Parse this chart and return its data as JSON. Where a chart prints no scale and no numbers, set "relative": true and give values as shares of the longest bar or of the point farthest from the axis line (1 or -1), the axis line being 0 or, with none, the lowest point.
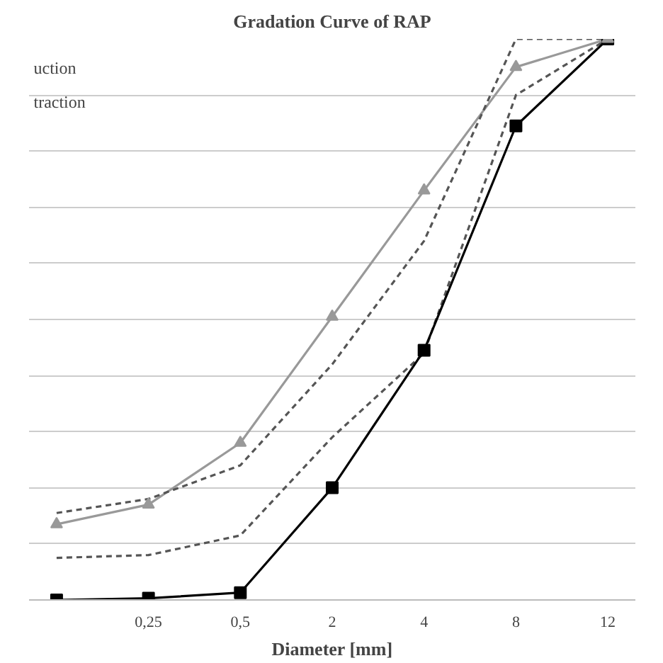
{
  "chart_data": {
    "type": "line",
    "title": "Gradation Curve of RAP",
    "xlabel": "Diameter [mm]",
    "categories": [
      null,
      "0,25",
      "0,5",
      "2",
      "4",
      "8",
      "12"
    ],
    "relative": true,
    "grid": "y",
    "annotations": [
      "uction",
      "traction"
    ],
    "series": [
      {
        "color": "#999999",
        "marker": "triangle",
        "line_style": "solid",
        "values": [
          0.135,
          0.17,
          0.28,
          0.505,
          0.73,
          0.95,
          1.0
        ]
      },
      {
        "color": "#555555",
        "marker": "none",
        "line_style": "dashed",
        "values": [
          0.155,
          0.18,
          0.24,
          0.42,
          0.64,
          1.0,
          1.0
        ]
      },
      {
        "color": "#555555",
        "marker": "none",
        "line_style": "dashed",
        "values": [
          0.075,
          0.08,
          0.115,
          0.29,
          0.44,
          0.9,
          1.0
        ]
      },
      {
        "color": "#000000",
        "marker": "square",
        "line_style": "solid",
        "values": [
          0.0,
          0.003,
          0.013,
          0.2,
          0.445,
          0.845,
          1.0
        ]
      }
    ]
  }
}
